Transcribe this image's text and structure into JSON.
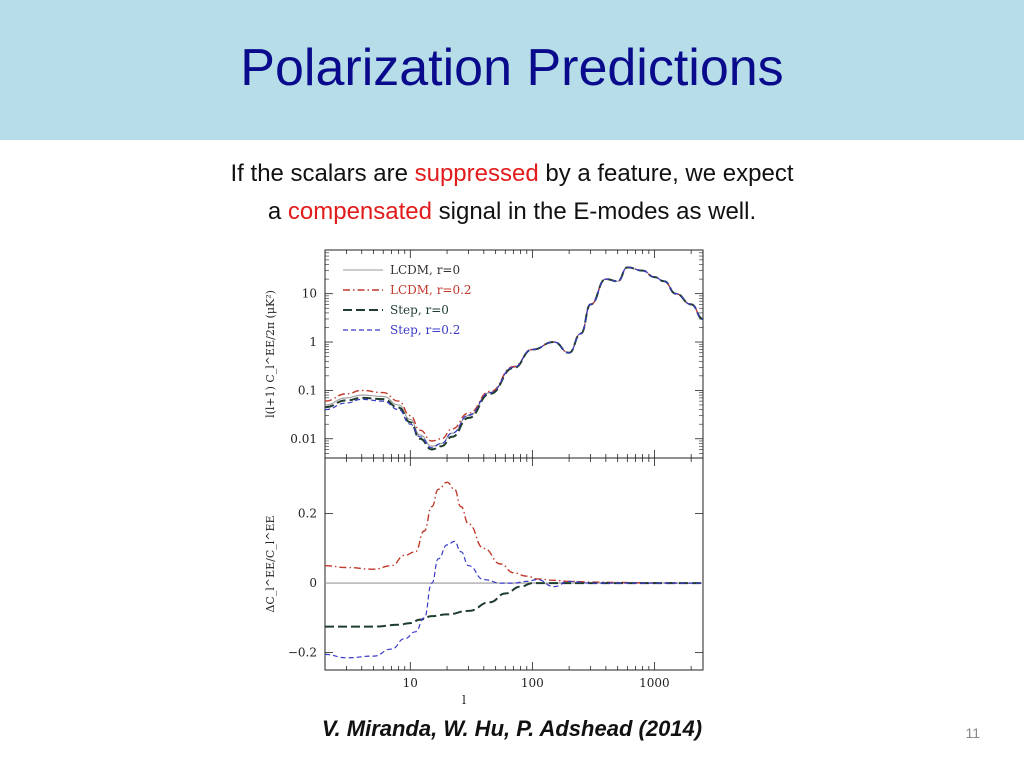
{
  "slide": {
    "title": "Polarization Predictions",
    "intro": {
      "line1_a": "If the scalars are ",
      "line1_hl": "suppressed",
      "line1_b": " by a feature, we expect",
      "line2_a": "a ",
      "line2_hl": "compensated",
      "line2_b": " signal in the E-modes as well."
    },
    "citation": "V. Miranda, W. Hu, P. Adshead (2014)",
    "slide_number": "11",
    "highlight_color": "#e21b1b",
    "title_color": "#0a0a8c",
    "title_band_color": "#b7dde8"
  },
  "chart_data": [
    {
      "type": "line",
      "panel": "top",
      "ylabel": "l(l+1) C_l^EE/2π (μK²)",
      "yscale": "log",
      "xscale": "log",
      "xlim": [
        2,
        2500
      ],
      "ylim": [
        0.004,
        80
      ],
      "yticks": [
        {
          "v": 10,
          "label": "10"
        },
        {
          "v": 1,
          "label": "1"
        },
        {
          "v": 0.1,
          "label": "0.1"
        },
        {
          "v": 0.01,
          "label": "0.01"
        }
      ],
      "legend": {
        "position": "top-left",
        "entries": [
          {
            "name": "LCDM, r=0",
            "color": "#888888",
            "style": "solid"
          },
          {
            "name": "LCDM, r=0.2",
            "color": "#c0392b",
            "style": "dashdot"
          },
          {
            "name": "Step, r=0",
            "color": "#1f3d2e",
            "style": "longdash"
          },
          {
            "name": "Step, r=0.2",
            "color": "#3a3ac8",
            "style": "dash"
          }
        ]
      },
      "series": [
        {
          "name": "LCDM, r=0",
          "x": [
            2,
            3,
            4,
            6,
            8,
            10,
            12,
            15,
            18,
            22,
            30,
            45,
            70,
            100,
            150,
            200,
            250,
            300,
            400,
            500,
            600,
            800,
            1000,
            1200,
            1500,
            2000,
            2500
          ],
          "y": [
            0.05,
            0.07,
            0.08,
            0.075,
            0.05,
            0.025,
            0.012,
            0.007,
            0.008,
            0.013,
            0.03,
            0.09,
            0.3,
            0.7,
            1.0,
            0.6,
            1.5,
            6,
            20,
            18,
            35,
            30,
            22,
            18,
            10,
            6,
            3
          ]
        },
        {
          "name": "LCDM, r=0.2",
          "x": [
            2,
            3,
            4,
            6,
            8,
            10,
            12,
            15,
            18,
            22,
            30,
            45,
            70,
            100,
            150,
            200,
            250,
            300,
            400,
            500,
            600,
            800,
            1000,
            1200,
            1500,
            2000,
            2500
          ],
          "y": [
            0.06,
            0.085,
            0.1,
            0.09,
            0.06,
            0.03,
            0.015,
            0.009,
            0.01,
            0.016,
            0.034,
            0.095,
            0.31,
            0.7,
            1.0,
            0.6,
            1.5,
            6,
            20,
            18,
            35,
            30,
            22,
            18,
            10,
            6,
            3
          ]
        },
        {
          "name": "Step, r=0",
          "x": [
            2,
            3,
            4,
            6,
            8,
            10,
            12,
            15,
            18,
            22,
            30,
            45,
            70,
            100,
            150,
            200,
            250,
            300,
            400,
            500,
            600,
            800,
            1000,
            1200,
            1500,
            2000,
            2500
          ],
          "y": [
            0.045,
            0.062,
            0.07,
            0.066,
            0.044,
            0.022,
            0.01,
            0.006,
            0.007,
            0.011,
            0.027,
            0.085,
            0.29,
            0.7,
            1.0,
            0.6,
            1.5,
            6,
            20,
            18,
            35,
            30,
            22,
            18,
            10,
            6,
            3
          ]
        },
        {
          "name": "Step, r=0.2",
          "x": [
            2,
            3,
            4,
            6,
            8,
            10,
            12,
            15,
            18,
            22,
            30,
            45,
            70,
            100,
            150,
            200,
            250,
            300,
            400,
            500,
            600,
            800,
            1000,
            1200,
            1500,
            2000,
            2500
          ],
          "y": [
            0.04,
            0.055,
            0.065,
            0.06,
            0.04,
            0.02,
            0.011,
            0.0065,
            0.008,
            0.013,
            0.031,
            0.09,
            0.3,
            0.7,
            1.0,
            0.6,
            1.5,
            6,
            20,
            18,
            35,
            30,
            22,
            18,
            10,
            6,
            3
          ]
        }
      ]
    },
    {
      "type": "line",
      "panel": "bottom",
      "xlabel": "l",
      "ylabel": "ΔC_l^EE/C_l^EE",
      "xscale": "log",
      "xlim": [
        2,
        2500
      ],
      "ylim": [
        -0.25,
        0.36
      ],
      "xticks": [
        {
          "v": 10,
          "label": "10"
        },
        {
          "v": 100,
          "label": "100"
        },
        {
          "v": 1000,
          "label": "1000"
        }
      ],
      "yticks": [
        {
          "v": 0.2,
          "label": "0.2"
        },
        {
          "v": 0,
          "label": "0"
        },
        {
          "v": -0.2,
          "label": "−0.2"
        }
      ],
      "series": [
        {
          "name": "LCDM, r=0",
          "x": [
            2,
            2500
          ],
          "y": [
            0,
            0
          ]
        },
        {
          "name": "LCDM, r=0.2",
          "x": [
            2,
            3,
            5,
            7,
            9,
            11,
            13,
            15,
            17,
            20,
            23,
            26,
            30,
            40,
            55,
            70,
            90,
            110,
            150,
            200,
            300,
            500,
            800,
            1200,
            2500
          ],
          "y": [
            0.05,
            0.045,
            0.04,
            0.05,
            0.08,
            0.09,
            0.15,
            0.22,
            0.27,
            0.29,
            0.27,
            0.22,
            0.17,
            0.1,
            0.055,
            0.03,
            0.02,
            0.012,
            0.008,
            0.005,
            0.003,
            0.002,
            0.001,
            0.001,
            0.0
          ]
        },
        {
          "name": "Step, r=0",
          "x": [
            2,
            5,
            8,
            10,
            12,
            15,
            20,
            30,
            45,
            60,
            80,
            100,
            150,
            200,
            300,
            500,
            1000,
            2500
          ],
          "y": [
            -0.125,
            -0.125,
            -0.12,
            -0.115,
            -0.105,
            -0.095,
            -0.09,
            -0.08,
            -0.055,
            -0.03,
            -0.01,
            0.0,
            0.0,
            0.0,
            0.0,
            0.0,
            0.0,
            0.0
          ]
        },
        {
          "name": "Step, r=0.2",
          "x": [
            2,
            3,
            5,
            7,
            9,
            11,
            13,
            15,
            17,
            20,
            23,
            26,
            30,
            40,
            55,
            70,
            90,
            110,
            150,
            200,
            300,
            500,
            1000,
            2500
          ],
          "y": [
            -0.205,
            -0.215,
            -0.21,
            -0.19,
            -0.16,
            -0.14,
            -0.1,
            0.0,
            0.07,
            0.11,
            0.12,
            0.09,
            0.05,
            0.01,
            0.0,
            0.0,
            0.005,
            0.01,
            -0.01,
            0.005,
            0.0,
            0.0,
            0.0,
            0.0
          ]
        }
      ]
    }
  ]
}
